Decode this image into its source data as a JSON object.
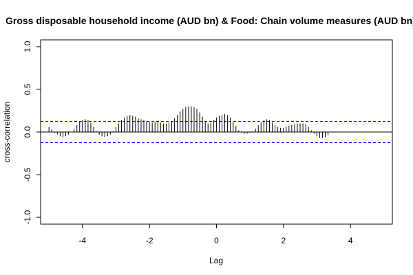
{
  "chart_data": {
    "type": "bar",
    "title": "Gross disposable household income (AUD bn) & Food: Chain volume measures (AUD bn)",
    "xlabel": "Lag",
    "ylabel": "cross-correlation",
    "xlim": [
      -5.25,
      5.25
    ],
    "ylim": [
      -1.08,
      1.08
    ],
    "x_ticks": [
      -4,
      -2,
      0,
      2,
      4
    ],
    "x_tick_labels": [
      "-4",
      "-2",
      "0",
      "2",
      "4"
    ],
    "y_ticks": [
      -1.0,
      -0.5,
      0.0,
      0.5,
      1.0
    ],
    "y_tick_labels": [
      "-1.0",
      "-0.5",
      "0.0",
      "0.5",
      "1.0"
    ],
    "confidence_bound": 0.125,
    "colors": {
      "bars": "#000000",
      "confidence_lines": "#0000ff",
      "zero_line": "#000000"
    },
    "lag_step": 0.0833,
    "lags_from": -5.0,
    "values": [
      0.06,
      0.03,
      -0.01,
      -0.03,
      -0.05,
      -0.06,
      -0.05,
      -0.03,
      0.0,
      0.04,
      0.08,
      0.12,
      0.14,
      0.15,
      0.14,
      0.11,
      0.06,
      0.01,
      -0.03,
      -0.05,
      -0.06,
      -0.05,
      -0.03,
      0.01,
      0.06,
      0.1,
      0.14,
      0.17,
      0.19,
      0.2,
      0.19,
      0.18,
      0.16,
      0.15,
      0.14,
      0.13,
      0.12,
      0.11,
      0.12,
      0.12,
      0.11,
      0.1,
      0.1,
      0.11,
      0.13,
      0.16,
      0.2,
      0.24,
      0.27,
      0.29,
      0.3,
      0.3,
      0.29,
      0.27,
      0.23,
      0.18,
      0.13,
      0.1,
      0.11,
      0.14,
      0.17,
      0.19,
      0.2,
      0.21,
      0.2,
      0.17,
      0.12,
      0.07,
      0.02,
      -0.01,
      -0.02,
      -0.02,
      -0.01,
      0.01,
      0.04,
      0.08,
      0.11,
      0.14,
      0.15,
      0.14,
      0.11,
      0.08,
      0.06,
      0.05,
      0.05,
      0.06,
      0.07,
      0.08,
      0.09,
      0.1,
      0.1,
      0.1,
      0.09,
      0.06,
      0.02,
      -0.02,
      -0.05,
      -0.07,
      -0.07,
      -0.06,
      -0.04
    ]
  }
}
